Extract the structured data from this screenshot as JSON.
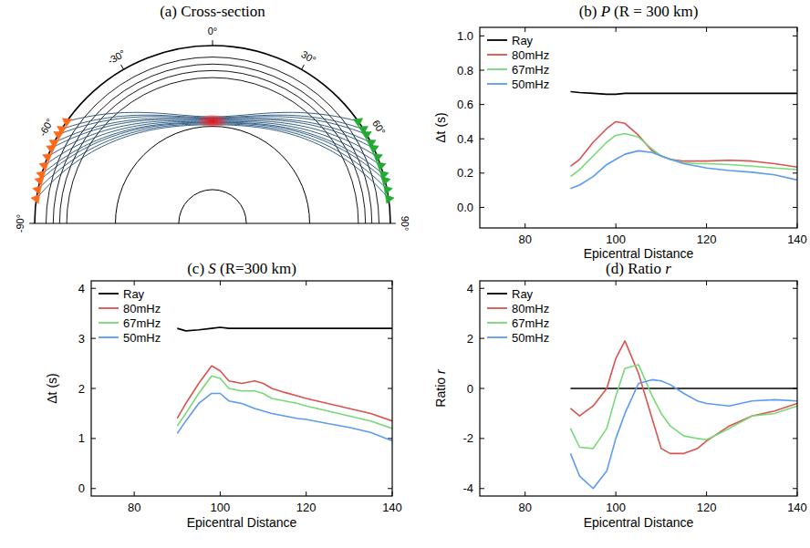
{
  "chart_data": [
    {
      "type": "cross_section",
      "title": "(a) Cross-section",
      "ticks": [
        {
          "value": -90,
          "label": "-90°"
        },
        {
          "value": -60,
          "label": "-60°"
        },
        {
          "value": -30,
          "label": "-30°"
        },
        {
          "value": 0,
          "label": "0°"
        },
        {
          "value": 30,
          "label": "30°"
        },
        {
          "value": 60,
          "label": "60°"
        },
        {
          "value": 90,
          "label": "90°"
        }
      ],
      "events_deg": [
        -55,
        -58,
        -60,
        -63,
        -65,
        -68,
        -71,
        -74,
        -76,
        -79,
        -82
      ],
      "stations_deg": [
        55,
        58,
        60,
        63,
        65,
        68,
        71,
        74,
        76,
        79,
        82
      ],
      "event_color": "#ff6a1a",
      "station_color": "#22aa33"
    },
    {
      "type": "line",
      "title": "(b) P (R = 300 km)",
      "x_label": "Epicentral Distance",
      "y_label": "Δt (s)",
      "x": [
        90,
        92,
        95,
        98,
        100,
        102,
        105,
        108,
        110,
        112,
        115,
        118,
        120,
        125,
        130,
        135,
        140
      ],
      "series": [
        {
          "name": "Ray",
          "color": "#000000",
          "values": [
            0.675,
            0.67,
            0.665,
            0.66,
            0.66,
            0.665,
            0.665,
            0.665,
            0.665,
            0.665,
            0.665,
            0.665,
            0.665,
            0.665,
            0.665,
            0.665,
            0.665
          ]
        },
        {
          "name": "80mHz",
          "color": "#d9534f",
          "values": [
            0.24,
            0.28,
            0.38,
            0.46,
            0.5,
            0.49,
            0.42,
            0.33,
            0.3,
            0.28,
            0.27,
            0.27,
            0.27,
            0.275,
            0.27,
            0.255,
            0.235
          ]
        },
        {
          "name": "67mHz",
          "color": "#77d977",
          "values": [
            0.18,
            0.22,
            0.3,
            0.38,
            0.42,
            0.43,
            0.41,
            0.34,
            0.3,
            0.28,
            0.26,
            0.255,
            0.255,
            0.25,
            0.24,
            0.23,
            0.22
          ]
        },
        {
          "name": "50mHz",
          "color": "#5b9bf0",
          "values": [
            0.11,
            0.13,
            0.18,
            0.25,
            0.28,
            0.31,
            0.33,
            0.32,
            0.3,
            0.28,
            0.255,
            0.24,
            0.23,
            0.215,
            0.205,
            0.19,
            0.16
          ]
        }
      ],
      "xlim": [
        70,
        140
      ],
      "ylim": [
        -0.12,
        1.05
      ],
      "xticks": [
        80,
        100,
        120,
        140
      ],
      "yticks": [
        {
          "value": 0,
          "label": "0.0"
        },
        {
          "value": 0.2,
          "label": "0.2"
        },
        {
          "value": 0.4,
          "label": "0.4"
        },
        {
          "value": 0.6,
          "label": "0.6"
        },
        {
          "value": 0.8,
          "label": "0.8"
        },
        {
          "value": 1,
          "label": "1.0"
        }
      ],
      "legend": "upper-left"
    },
    {
      "type": "line",
      "title": "(c) S (R=300 km)",
      "x_label": "Epicentral Distance",
      "y_label": "Δt (s)",
      "x": [
        90,
        92,
        95,
        98,
        100,
        102,
        105,
        108,
        110,
        112,
        115,
        118,
        120,
        125,
        130,
        135,
        140
      ],
      "series": [
        {
          "name": "Ray",
          "color": "#000000",
          "values": [
            3.2,
            3.15,
            3.17,
            3.2,
            3.22,
            3.2,
            3.2,
            3.2,
            3.2,
            3.2,
            3.2,
            3.2,
            3.2,
            3.2,
            3.2,
            3.2,
            3.2
          ]
        },
        {
          "name": "80mHz",
          "color": "#d9534f",
          "values": [
            1.4,
            1.7,
            2.1,
            2.45,
            2.35,
            2.15,
            2.1,
            2.15,
            2.1,
            2.0,
            1.92,
            1.85,
            1.8,
            1.7,
            1.6,
            1.5,
            1.35
          ]
        },
        {
          "name": "67mHz",
          "color": "#77d977",
          "values": [
            1.25,
            1.5,
            1.9,
            2.25,
            2.2,
            2.0,
            1.95,
            1.95,
            1.9,
            1.8,
            1.75,
            1.7,
            1.65,
            1.55,
            1.45,
            1.35,
            1.2
          ]
        },
        {
          "name": "50mHz",
          "color": "#5b9bf0",
          "values": [
            1.1,
            1.35,
            1.7,
            1.9,
            1.9,
            1.75,
            1.7,
            1.6,
            1.55,
            1.5,
            1.45,
            1.4,
            1.38,
            1.3,
            1.22,
            1.12,
            0.95
          ]
        }
      ],
      "xlim": [
        70,
        140
      ],
      "ylim": [
        -0.15,
        4.15
      ],
      "xticks": [
        80,
        100,
        120,
        140
      ],
      "yticks": [
        0,
        1,
        2,
        3,
        4
      ],
      "legend": "upper-left"
    },
    {
      "type": "line",
      "title": "(d) Ratio r",
      "x_label": "Epicentral Distance",
      "y_label": "Ratio r",
      "x": [
        90,
        92,
        95,
        98,
        100,
        102,
        105,
        108,
        110,
        112,
        115,
        118,
        120,
        125,
        130,
        135,
        140
      ],
      "series": [
        {
          "name": "Ray",
          "color": "#000000",
          "values": [
            0,
            0,
            0,
            0,
            0,
            0,
            0,
            0,
            0,
            0,
            0,
            0,
            0,
            0,
            0,
            0,
            0
          ]
        },
        {
          "name": "80mHz",
          "color": "#d9534f",
          "values": [
            -0.8,
            -1.1,
            -0.7,
            0,
            1.2,
            1.9,
            0.6,
            -1.2,
            -2.4,
            -2.6,
            -2.6,
            -2.4,
            -2.1,
            -1.5,
            -1.1,
            -0.9,
            -0.6
          ]
        },
        {
          "name": "67mHz",
          "color": "#77d977",
          "values": [
            -1.6,
            -2.35,
            -2.4,
            -1.6,
            -0.3,
            0.8,
            0.95,
            -0.3,
            -1.0,
            -1.5,
            -1.9,
            -2.0,
            -2.05,
            -1.6,
            -1.1,
            -1.0,
            -0.7
          ]
        },
        {
          "name": "50mHz",
          "color": "#5b9bf0",
          "values": [
            -2.6,
            -3.5,
            -4.0,
            -3.3,
            -2.0,
            -1.0,
            0.2,
            0.35,
            0.3,
            0.15,
            -0.2,
            -0.5,
            -0.6,
            -0.7,
            -0.5,
            -0.45,
            -0.5
          ]
        }
      ],
      "xlim": [
        70,
        140
      ],
      "ylim": [
        -4.3,
        4.3
      ],
      "xticks": [
        80,
        100,
        120,
        140
      ],
      "yticks": [
        -4,
        -2,
        0,
        2,
        4
      ],
      "legend": "upper-left"
    }
  ]
}
